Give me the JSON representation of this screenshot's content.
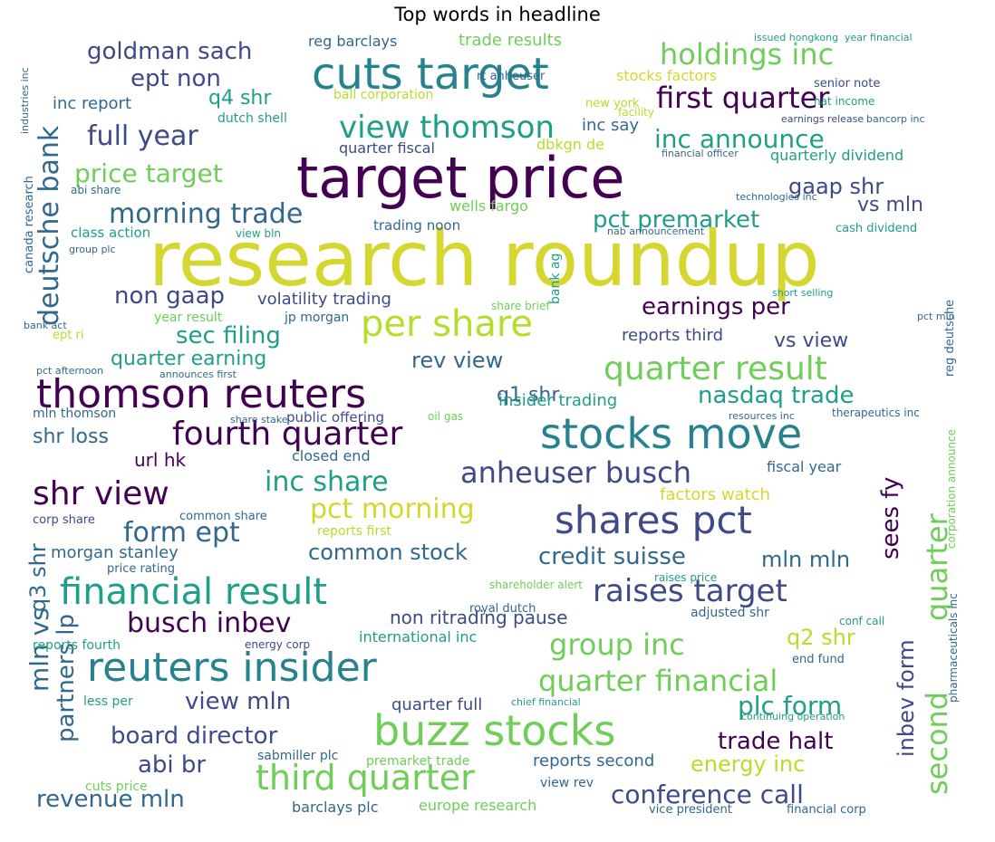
{
  "title": "Top words in headline",
  "palette": {
    "dark_purple": "#440154",
    "indigo": "#3e4a89",
    "blue": "#31688e",
    "teal": "#26828e",
    "cyan": "#1f9e89",
    "green": "#35b779",
    "lime": "#6ece58",
    "yellow_green": "#b5de2b",
    "yellow": "#d6d631"
  },
  "words": [
    {
      "text": "research roundup",
      "color": "yellow"
    },
    {
      "text": "target price",
      "color": "dark_purple"
    },
    {
      "text": "cuts target",
      "color": "teal"
    },
    {
      "text": "buzz stocks",
      "color": "lime"
    },
    {
      "text": "stocks move",
      "color": "teal"
    },
    {
      "text": "thomson reuters",
      "color": "dark_purple"
    },
    {
      "text": "reuters insider",
      "color": "teal"
    },
    {
      "text": "financial result",
      "color": "cyan"
    },
    {
      "text": "shares pct",
      "color": "indigo"
    },
    {
      "text": "per share",
      "color": "yellow_green"
    },
    {
      "text": "view thomson",
      "color": "cyan"
    },
    {
      "text": "third quarter",
      "color": "lime"
    },
    {
      "text": "quarter result",
      "color": "lime"
    },
    {
      "text": "fourth quarter",
      "color": "dark_purple"
    },
    {
      "text": "holdings inc",
      "color": "lime"
    },
    {
      "text": "first quarter",
      "color": "dark_purple"
    },
    {
      "text": "raises target",
      "color": "indigo"
    },
    {
      "text": "goldman sach",
      "color": "indigo"
    },
    {
      "text": "deutsche bank",
      "color": "blue"
    },
    {
      "text": "shr view",
      "color": "dark_purple"
    },
    {
      "text": "full year",
      "color": "indigo"
    },
    {
      "text": "anheuser busch",
      "color": "indigo"
    },
    {
      "text": "quarter financial",
      "color": "lime"
    },
    {
      "text": "morning trade",
      "color": "blue"
    },
    {
      "text": "second",
      "color": "lime"
    },
    {
      "text": "quarter",
      "color": "lime"
    },
    {
      "text": "pct morning",
      "color": "yellow"
    },
    {
      "text": "inc share",
      "color": "cyan"
    },
    {
      "text": "inc announce",
      "color": "cyan"
    },
    {
      "text": "price target",
      "color": "lime"
    },
    {
      "text": "group inc",
      "color": "lime"
    },
    {
      "text": "form ept",
      "color": "blue"
    },
    {
      "text": "busch inbev",
      "color": "dark_purple"
    },
    {
      "text": "conference call",
      "color": "indigo"
    },
    {
      "text": "credit suisse",
      "color": "blue"
    },
    {
      "text": "plc form",
      "color": "cyan"
    },
    {
      "text": "ept non",
      "color": "indigo"
    },
    {
      "text": "revenue mln",
      "color": "blue"
    },
    {
      "text": "sec filing",
      "color": "cyan"
    },
    {
      "text": "earnings per",
      "color": "dark_purple"
    },
    {
      "text": "nasdaq trade",
      "color": "cyan"
    },
    {
      "text": "pct premarket",
      "color": "cyan"
    },
    {
      "text": "gaap shr",
      "color": "indigo"
    },
    {
      "text": "common stock",
      "color": "blue"
    },
    {
      "text": "non gaap",
      "color": "indigo"
    },
    {
      "text": "trade halt",
      "color": "dark_purple"
    },
    {
      "text": "energy inc",
      "color": "yellow_green"
    },
    {
      "text": "board director",
      "color": "indigo"
    },
    {
      "text": "view mln",
      "color": "indigo"
    },
    {
      "text": "abi br",
      "color": "indigo"
    },
    {
      "text": "mln mln",
      "color": "blue"
    },
    {
      "text": "q2 shr",
      "color": "yellow_green"
    },
    {
      "text": "q4 shr",
      "color": "cyan"
    },
    {
      "text": "vs view",
      "color": "indigo"
    },
    {
      "text": "vs mln",
      "color": "indigo"
    },
    {
      "text": "rev view",
      "color": "blue"
    },
    {
      "text": "quarter earning",
      "color": "cyan"
    },
    {
      "text": "shr loss",
      "color": "blue"
    },
    {
      "text": "url hk",
      "color": "dark_purple"
    },
    {
      "text": "q1 shr",
      "color": "blue"
    },
    {
      "text": "morgan stanley",
      "color": "blue"
    },
    {
      "text": "non ritrading pause",
      "color": "indigo"
    },
    {
      "text": "volatility trading",
      "color": "indigo"
    },
    {
      "text": "sees fy",
      "color": "dark_purple"
    },
    {
      "text": "inbev form",
      "color": "indigo"
    },
    {
      "text": "mln vs",
      "color": "blue"
    },
    {
      "text": "q3 shr",
      "color": "blue"
    },
    {
      "text": "partners lp",
      "color": "blue"
    },
    {
      "text": "inc report",
      "color": "blue"
    },
    {
      "text": "factors watch",
      "color": "yellow"
    },
    {
      "text": "quarter full",
      "color": "indigo"
    },
    {
      "text": "reports second",
      "color": "blue"
    },
    {
      "text": "closed end",
      "color": "blue"
    },
    {
      "text": "fiscal year",
      "color": "blue"
    },
    {
      "text": "adjusted shr",
      "color": "blue"
    },
    {
      "text": "international inc",
      "color": "cyan"
    },
    {
      "text": "inc say",
      "color": "blue"
    },
    {
      "text": "reports third",
      "color": "indigo"
    },
    {
      "text": "insider trading",
      "color": "cyan"
    },
    {
      "text": "quarterly dividend",
      "color": "cyan"
    },
    {
      "text": "quarter fiscal",
      "color": "indigo"
    },
    {
      "text": "stocks factors",
      "color": "yellow"
    },
    {
      "text": "trade results",
      "color": "lime"
    },
    {
      "text": "reg barclays",
      "color": "blue"
    },
    {
      "text": "wells fargo",
      "color": "lime"
    },
    {
      "text": "trading noon",
      "color": "blue"
    },
    {
      "text": "class action",
      "color": "cyan"
    },
    {
      "text": "dbkgn de",
      "color": "yellow_green"
    },
    {
      "text": "ball corporation",
      "color": "yellow_green"
    },
    {
      "text": "dutch shell",
      "color": "cyan"
    },
    {
      "text": "barclays plc",
      "color": "blue"
    },
    {
      "text": "europe research",
      "color": "lime"
    },
    {
      "text": "view rev",
      "color": "blue"
    },
    {
      "text": "year result",
      "color": "lime"
    },
    {
      "text": "jp morgan",
      "color": "blue"
    },
    {
      "text": "public offering",
      "color": "indigo"
    },
    {
      "text": "mln thomson",
      "color": "blue"
    },
    {
      "text": "reports first",
      "color": "yellow_green"
    },
    {
      "text": "corp share",
      "color": "indigo"
    },
    {
      "text": "price rating",
      "color": "blue"
    },
    {
      "text": "common share",
      "color": "blue"
    },
    {
      "text": "royal dutch",
      "color": "blue"
    },
    {
      "text": "reports fourth",
      "color": "cyan"
    },
    {
      "text": "less per",
      "color": "cyan"
    },
    {
      "text": "cuts price",
      "color": "lime"
    },
    {
      "text": "sabmiller plc",
      "color": "blue"
    },
    {
      "text": "premarket trade",
      "color": "lime"
    },
    {
      "text": "vice president",
      "color": "blue"
    },
    {
      "text": "financial corp",
      "color": "blue"
    },
    {
      "text": "end fund",
      "color": "blue"
    },
    {
      "text": "conf call",
      "color": "cyan"
    },
    {
      "text": "energy corp",
      "color": "indigo"
    },
    {
      "text": "senior note",
      "color": "indigo"
    },
    {
      "text": "nat income",
      "color": "cyan"
    },
    {
      "text": "new york",
      "color": "yellow_green"
    },
    {
      "text": "rt anheuser",
      "color": "blue"
    },
    {
      "text": "ept ri",
      "color": "yellow_green"
    },
    {
      "text": "bank ag",
      "color": "cyan"
    },
    {
      "text": "view bln",
      "color": "cyan"
    },
    {
      "text": "abi share",
      "color": "blue"
    },
    {
      "text": "share brief",
      "color": "lime"
    },
    {
      "text": "oil gas",
      "color": "lime"
    },
    {
      "text": "therapeutics inc",
      "color": "blue"
    },
    {
      "text": "shareholder alert",
      "color": "lime"
    },
    {
      "text": "raises price",
      "color": "cyan"
    },
    {
      "text": "cash dividend",
      "color": "cyan"
    },
    {
      "text": "reg deutsche",
      "color": "blue"
    },
    {
      "text": "pharmaceuticals inc",
      "color": "blue"
    },
    {
      "text": "corporation announce",
      "color": "lime"
    },
    {
      "text": "canada research",
      "color": "blue"
    },
    {
      "text": "bancorp inc",
      "color": "blue"
    },
    {
      "text": "technologies inc",
      "color": "blue"
    },
    {
      "text": "issued hongkong",
      "color": "cyan"
    },
    {
      "text": "year financial",
      "color": "cyan"
    },
    {
      "text": "financial officer",
      "color": "blue"
    },
    {
      "text": "earnings release",
      "color": "indigo"
    },
    {
      "text": "chief financial",
      "color": "cyan"
    },
    {
      "text": "continuing operation",
      "color": "cyan"
    },
    {
      "text": "group plc",
      "color": "blue"
    },
    {
      "text": "pct afternoon",
      "color": "blue"
    },
    {
      "text": "announces first",
      "color": "blue"
    },
    {
      "text": "share stake",
      "color": "blue"
    },
    {
      "text": "resources inc",
      "color": "blue"
    },
    {
      "text": "pct mln",
      "color": "blue"
    },
    {
      "text": "facility",
      "color": "yellow_green"
    },
    {
      "text": "bank act",
      "color": "blue"
    },
    {
      "text": "industries inc",
      "color": "blue"
    },
    {
      "text": "short selling",
      "color": "cyan"
    },
    {
      "text": "nab announcement",
      "color": "blue"
    }
  ]
}
